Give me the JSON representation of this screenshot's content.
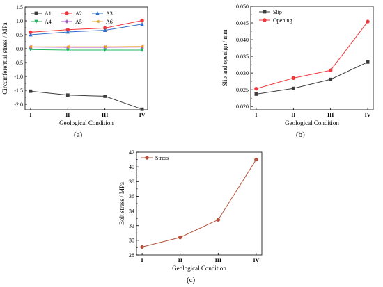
{
  "chart_data": [
    {
      "id": "a",
      "type": "line",
      "panel_label": "(a)",
      "xlabel": "Geological Condition",
      "ylabel": "Circumferential stress / MPa",
      "categories": [
        "I",
        "II",
        "III",
        "IV"
      ],
      "ylim": [
        -2.2,
        1.5
      ],
      "yticks": [
        -2.0,
        -1.5,
        -1.0,
        -0.5,
        0.0,
        0.5,
        1.0,
        1.5
      ],
      "ytick_labels": [
        "-2.0",
        "-1.5",
        "-1.0",
        "-0.5",
        "0.0",
        "0.5",
        "1.0",
        "1.5"
      ],
      "legend_position": "top-left",
      "series": [
        {
          "name": "A1",
          "color": "#3c3c3c",
          "marker": "square",
          "values": [
            -1.53,
            -1.67,
            -1.71,
            -2.18
          ]
        },
        {
          "name": "A2",
          "color": "#f0383c",
          "marker": "circle",
          "values": [
            0.59,
            0.68,
            0.74,
            1.01
          ]
        },
        {
          "name": "A3",
          "color": "#2d6ec8",
          "marker": "triangle",
          "values": [
            0.5,
            0.6,
            0.66,
            0.88
          ]
        },
        {
          "name": "A4",
          "color": "#1fb55a",
          "marker": "triangle-down",
          "values": [
            -0.03,
            -0.05,
            -0.05,
            -0.05
          ]
        },
        {
          "name": "A5",
          "color": "#b055d6",
          "marker": "diamond",
          "values": [
            0.06,
            0.05,
            0.05,
            0.06
          ]
        },
        {
          "name": "A6",
          "color": "#f0a020",
          "marker": "triangle-left",
          "values": [
            0.07,
            0.07,
            0.07,
            0.08
          ]
        }
      ]
    },
    {
      "id": "b",
      "type": "line",
      "panel_label": "(b)",
      "xlabel": "Geological Condition",
      "ylabel": "Slip and openign / mm",
      "categories": [
        "I",
        "II",
        "III",
        "IV"
      ],
      "ylim": [
        0.019,
        0.05
      ],
      "yticks": [
        0.02,
        0.025,
        0.03,
        0.035,
        0.04,
        0.045,
        0.05
      ],
      "ytick_labels": [
        "0.020",
        "0.025",
        "0.030",
        "0.035",
        "0.040",
        "0.045",
        "0.050"
      ],
      "legend_position": "top-left",
      "series": [
        {
          "name": "Slip",
          "color": "#3c3c3c",
          "marker": "square",
          "values": [
            0.0237,
            0.0254,
            0.0281,
            0.0333
          ]
        },
        {
          "name": "Opening",
          "color": "#f0383c",
          "marker": "circle",
          "values": [
            0.0253,
            0.0285,
            0.0308,
            0.0454
          ]
        }
      ]
    },
    {
      "id": "c",
      "type": "line",
      "panel_label": "(c)",
      "xlabel": "Geological Condition",
      "ylabel": "Bolt stress / MPa",
      "categories": [
        "I",
        "II",
        "III",
        "IV"
      ],
      "ylim": [
        28,
        42
      ],
      "yticks": [
        28,
        30,
        32,
        34,
        36,
        38,
        40,
        42
      ],
      "ytick_labels": [
        "28",
        "30",
        "32",
        "34",
        "36",
        "38",
        "40",
        "42"
      ],
      "legend_position": "top-left",
      "series": [
        {
          "name": "Stress",
          "color": "#b5533c",
          "marker": "circle",
          "values": [
            29.1,
            30.4,
            32.8,
            41.0
          ]
        }
      ]
    }
  ]
}
